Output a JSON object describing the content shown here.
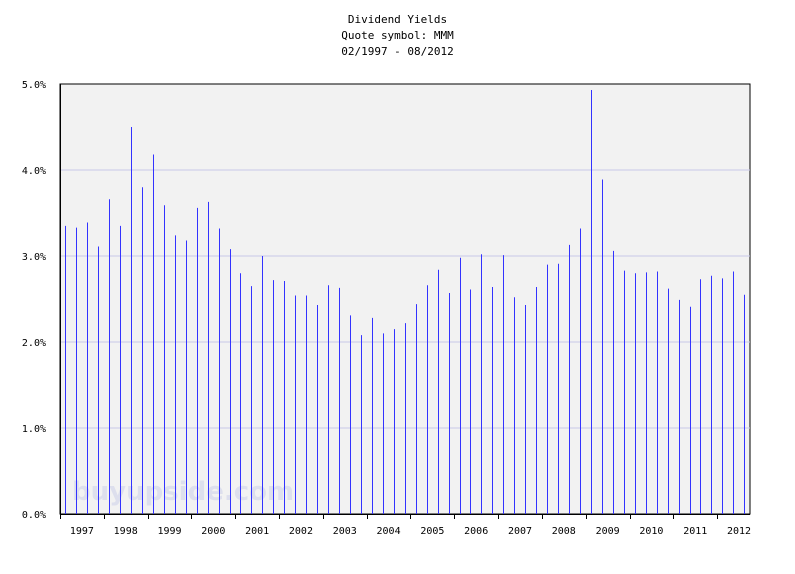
{
  "header": {
    "title": "Dividend Yields",
    "subtitle": "Quote symbol: MMM",
    "range": "02/1997 - 08/2012"
  },
  "watermark": "buyupside.com",
  "colors": {
    "plot_bg": "#f2f2f2",
    "bar": "#3333ff",
    "grid": "#c8c8e8",
    "axis": "#000000"
  },
  "chart_data": {
    "type": "bar",
    "title": "Dividend Yields",
    "subtitle": "Quote symbol: MMM",
    "ylabel": "",
    "xlabel": "",
    "ylim": [
      0,
      5.0
    ],
    "y_format": "percent",
    "yticks": [
      "0.0%",
      "1.0%",
      "2.0%",
      "3.0%",
      "4.0%",
      "5.0%"
    ],
    "xtick_labels": [
      "1997",
      "1998",
      "1999",
      "2000",
      "2001",
      "2002",
      "2003",
      "2004",
      "2005",
      "2006",
      "2007",
      "2008",
      "2009",
      "2010",
      "2011",
      "2012"
    ],
    "xlim": [
      1997.0,
      2012.75
    ],
    "grid": true,
    "x": [
      1997.12,
      1997.37,
      1997.62,
      1997.87,
      1998.12,
      1998.37,
      1998.62,
      1998.87,
      1999.12,
      1999.37,
      1999.62,
      1999.87,
      2000.12,
      2000.37,
      2000.62,
      2000.87,
      2001.12,
      2001.37,
      2001.62,
      2001.87,
      2002.12,
      2002.37,
      2002.62,
      2002.87,
      2003.12,
      2003.37,
      2003.62,
      2003.87,
      2004.12,
      2004.37,
      2004.62,
      2004.87,
      2005.12,
      2005.37,
      2005.62,
      2005.87,
      2006.12,
      2006.37,
      2006.62,
      2006.87,
      2007.12,
      2007.37,
      2007.62,
      2007.87,
      2008.12,
      2008.37,
      2008.62,
      2008.87,
      2009.12,
      2009.37,
      2009.62,
      2009.87,
      2010.12,
      2010.37,
      2010.62,
      2010.87,
      2011.12,
      2011.37,
      2011.62,
      2011.87,
      2012.12,
      2012.37,
      2012.62
    ],
    "values": [
      3.35,
      3.33,
      3.39,
      3.11,
      3.66,
      3.35,
      4.5,
      3.8,
      4.18,
      3.59,
      3.24,
      3.18,
      3.56,
      3.63,
      3.32,
      3.08,
      2.8,
      2.65,
      3.0,
      2.72,
      2.71,
      2.54,
      2.54,
      2.43,
      2.66,
      2.63,
      2.31,
      2.08,
      2.28,
      2.1,
      2.15,
      2.22,
      2.44,
      2.66,
      2.84,
      2.57,
      2.98,
      2.61,
      3.02,
      2.64,
      3.01,
      2.52,
      2.43,
      2.64,
      2.9,
      2.91,
      3.13,
      3.32,
      4.93,
      3.89,
      3.06,
      2.83,
      2.8,
      2.81,
      2.82,
      2.62,
      2.49,
      2.41,
      2.73,
      2.77,
      2.74,
      2.82,
      2.55
    ]
  }
}
